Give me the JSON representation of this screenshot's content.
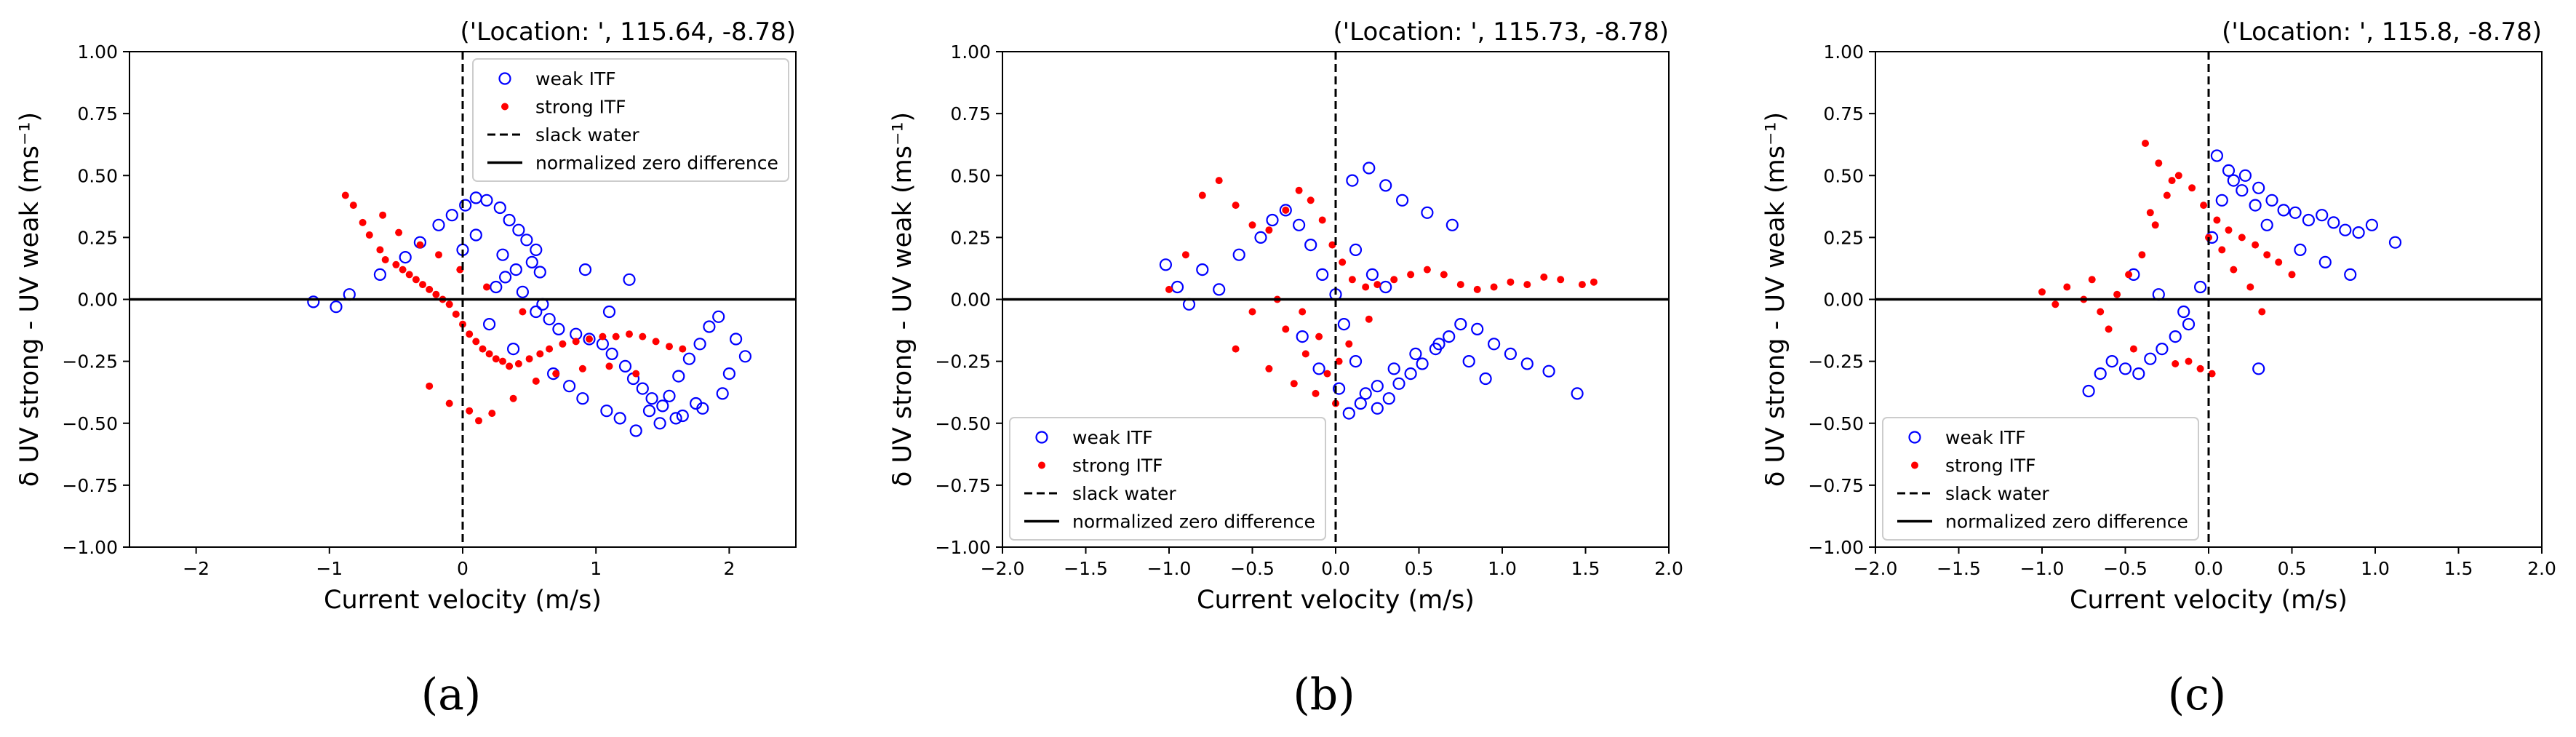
{
  "figure": {
    "marker_colors": {
      "weak": "#0000ff",
      "strong": "#ff0000"
    },
    "line_color": "#000000"
  },
  "chart_data": [
    {
      "type": "scatter",
      "caption": "(a)",
      "title": "('Location: ', 115.64, -8.78)",
      "xlabel": "Current velocity (m/s)",
      "ylabel": "δ UV strong - UV weak (ms⁻¹)",
      "xlim": [
        -2.5,
        2.5
      ],
      "ylim": [
        -1.0,
        1.0
      ],
      "xticks": [
        -2,
        -1,
        0,
        1,
        2
      ],
      "xtick_labels": [
        "−2",
        "−1",
        "0",
        "1",
        "2"
      ],
      "yticks": [
        -1.0,
        -0.75,
        -0.5,
        -0.25,
        0.0,
        0.25,
        0.5,
        0.75,
        1.0
      ],
      "ytick_labels": [
        "−1.00",
        "−0.75",
        "−0.50",
        "−0.25",
        "0.00",
        "0.25",
        "0.50",
        "0.75",
        "1.00"
      ],
      "legend_position": "top-right",
      "legend": [
        "weak ITF",
        "strong ITF",
        "slack water",
        "normalized zero difference"
      ],
      "reference_lines": {
        "slack_water_x": 0,
        "zero_difference_y": 0
      },
      "series": [
        {
          "name": "weak ITF",
          "marker": "open-circle",
          "x": [
            -1.12,
            -0.95,
            -0.85,
            -0.62,
            -0.43,
            -0.32,
            -0.18,
            -0.08,
            0.02,
            0.1,
            0.18,
            0.28,
            0.35,
            0.42,
            0.48,
            0.55,
            0.52,
            0.4,
            0.32,
            0.25,
            0.55,
            0.65,
            0.72,
            0.85,
            0.95,
            1.05,
            1.12,
            1.22,
            1.28,
            1.35,
            1.42,
            1.5,
            1.55,
            1.62,
            1.7,
            1.78,
            1.85,
            1.92,
            2.05,
            2.12,
            1.95,
            1.8,
            1.65,
            1.48,
            1.3,
            1.18,
            1.08,
            0.9,
            0.8,
            0.68,
            0.1,
            0.3,
            0.45,
            0.6,
            1.4,
            1.6,
            1.75,
            2.0,
            0.2,
            0.0,
            0.92,
            1.25,
            1.1,
            0.58,
            0.38
          ],
          "y": [
            -0.01,
            -0.03,
            0.02,
            0.1,
            0.17,
            0.23,
            0.3,
            0.34,
            0.38,
            0.41,
            0.4,
            0.37,
            0.32,
            0.28,
            0.24,
            0.2,
            0.15,
            0.12,
            0.09,
            0.05,
            -0.05,
            -0.08,
            -0.12,
            -0.14,
            -0.16,
            -0.18,
            -0.22,
            -0.27,
            -0.32,
            -0.36,
            -0.4,
            -0.43,
            -0.39,
            -0.31,
            -0.24,
            -0.18,
            -0.11,
            -0.07,
            -0.16,
            -0.23,
            -0.38,
            -0.44,
            -0.47,
            -0.5,
            -0.53,
            -0.48,
            -0.45,
            -0.4,
            -0.35,
            -0.3,
            0.26,
            0.18,
            0.03,
            -0.02,
            -0.45,
            -0.48,
            -0.42,
            -0.3,
            -0.1,
            0.2,
            0.12,
            0.08,
            -0.05,
            0.11,
            -0.2
          ]
        },
        {
          "name": "strong ITF",
          "marker": "dot",
          "x": [
            -0.88,
            -0.82,
            -0.75,
            -0.7,
            -0.62,
            -0.58,
            -0.5,
            -0.45,
            -0.4,
            -0.35,
            -0.3,
            -0.25,
            -0.2,
            -0.15,
            -0.1,
            -0.05,
            0.0,
            0.05,
            0.1,
            0.15,
            0.2,
            0.25,
            0.3,
            0.35,
            0.42,
            0.5,
            0.58,
            0.65,
            0.75,
            0.85,
            0.95,
            1.05,
            1.15,
            1.25,
            1.35,
            1.45,
            1.55,
            1.65,
            -0.25,
            -0.1,
            0.05,
            0.12,
            0.22,
            0.38,
            0.55,
            0.7,
            0.9,
            1.1,
            1.3,
            -0.6,
            -0.48,
            -0.32,
            -0.18,
            -0.02,
            0.18,
            0.45
          ],
          "y": [
            0.42,
            0.38,
            0.31,
            0.26,
            0.2,
            0.16,
            0.14,
            0.12,
            0.1,
            0.08,
            0.06,
            0.04,
            0.02,
            0.0,
            -0.02,
            -0.06,
            -0.1,
            -0.14,
            -0.17,
            -0.2,
            -0.22,
            -0.24,
            -0.25,
            -0.27,
            -0.26,
            -0.24,
            -0.22,
            -0.2,
            -0.18,
            -0.17,
            -0.16,
            -0.15,
            -0.15,
            -0.14,
            -0.15,
            -0.17,
            -0.19,
            -0.2,
            -0.35,
            -0.42,
            -0.45,
            -0.49,
            -0.46,
            -0.4,
            -0.33,
            -0.3,
            -0.28,
            -0.27,
            -0.3,
            0.34,
            0.27,
            0.22,
            0.18,
            0.12,
            0.05,
            -0.05
          ]
        }
      ]
    },
    {
      "type": "scatter",
      "caption": "(b)",
      "title": "('Location: ', 115.73, -8.78)",
      "xlabel": "Current velocity (m/s)",
      "ylabel": "δ UV strong - UV weak (ms⁻¹)",
      "xlim": [
        -2.0,
        2.0
      ],
      "ylim": [
        -1.0,
        1.0
      ],
      "xticks": [
        -2.0,
        -1.5,
        -1.0,
        -0.5,
        0.0,
        0.5,
        1.0,
        1.5,
        2.0
      ],
      "xtick_labels": [
        "−2.0",
        "−1.5",
        "−1.0",
        "−0.5",
        "0.0",
        "0.5",
        "1.0",
        "1.5",
        "2.0"
      ],
      "yticks": [
        -1.0,
        -0.75,
        -0.5,
        -0.25,
        0.0,
        0.25,
        0.5,
        0.75,
        1.0
      ],
      "ytick_labels": [
        "−1.00",
        "−0.75",
        "−0.50",
        "−0.25",
        "0.00",
        "0.25",
        "0.50",
        "0.75",
        "1.00"
      ],
      "legend_position": "bottom-left",
      "legend": [
        "weak ITF",
        "strong ITF",
        "slack water",
        "normalized zero difference"
      ],
      "reference_lines": {
        "slack_water_x": 0,
        "zero_difference_y": 0
      },
      "series": [
        {
          "name": "weak ITF",
          "marker": "open-circle",
          "x": [
            -1.02,
            -0.95,
            -0.88,
            -0.8,
            -0.7,
            -0.58,
            -0.45,
            -0.38,
            -0.3,
            -0.22,
            -0.15,
            -0.08,
            0.0,
            0.05,
            0.12,
            0.18,
            0.25,
            0.32,
            0.38,
            0.45,
            0.52,
            0.6,
            0.68,
            0.75,
            0.85,
            0.95,
            1.05,
            1.15,
            1.28,
            1.45,
            0.1,
            0.2,
            0.3,
            0.4,
            0.55,
            0.7,
            0.08,
            0.15,
            0.25,
            0.35,
            0.48,
            0.62,
            0.8,
            0.9,
            -0.2,
            -0.1,
            0.02,
            0.12,
            0.22,
            0.3
          ],
          "y": [
            0.14,
            0.05,
            -0.02,
            0.12,
            0.04,
            0.18,
            0.25,
            0.32,
            0.36,
            0.3,
            0.22,
            0.1,
            0.02,
            -0.1,
            -0.25,
            -0.38,
            -0.44,
            -0.4,
            -0.34,
            -0.3,
            -0.26,
            -0.2,
            -0.15,
            -0.1,
            -0.12,
            -0.18,
            -0.22,
            -0.26,
            -0.29,
            -0.38,
            0.48,
            0.53,
            0.46,
            0.4,
            0.35,
            0.3,
            -0.46,
            -0.42,
            -0.35,
            -0.28,
            -0.22,
            -0.18,
            -0.25,
            -0.32,
            -0.15,
            -0.28,
            -0.36,
            0.2,
            0.1,
            0.05
          ]
        },
        {
          "name": "strong ITF",
          "marker": "dot",
          "x": [
            -1.0,
            -0.9,
            -0.8,
            -0.7,
            -0.6,
            -0.5,
            -0.4,
            -0.3,
            -0.22,
            -0.15,
            -0.08,
            -0.02,
            0.04,
            0.1,
            0.18,
            0.25,
            0.35,
            0.45,
            0.55,
            0.65,
            0.75,
            0.85,
            0.95,
            1.05,
            1.15,
            1.25,
            1.35,
            1.48,
            1.55,
            -0.6,
            -0.4,
            -0.25,
            -0.12,
            0.0,
            -0.5,
            -0.3,
            -0.18,
            -0.05,
            0.08,
            0.2,
            -0.35,
            -0.2,
            -0.1,
            0.02
          ],
          "y": [
            0.04,
            0.18,
            0.42,
            0.48,
            0.38,
            0.3,
            0.28,
            0.36,
            0.44,
            0.4,
            0.32,
            0.22,
            0.15,
            0.08,
            0.05,
            0.06,
            0.08,
            0.1,
            0.12,
            0.1,
            0.06,
            0.04,
            0.05,
            0.07,
            0.06,
            0.09,
            0.08,
            0.06,
            0.07,
            -0.2,
            -0.28,
            -0.34,
            -0.38,
            -0.42,
            -0.05,
            -0.12,
            -0.22,
            -0.3,
            -0.18,
            -0.08,
            0.0,
            -0.05,
            -0.15,
            -0.25
          ]
        }
      ]
    },
    {
      "type": "scatter",
      "caption": "(c)",
      "title": "('Location: ', 115.8, -8.78)",
      "xlabel": "Current velocity (m/s)",
      "ylabel": "δ UV strong - UV weak (ms⁻¹)",
      "xlim": [
        -2.0,
        2.0
      ],
      "ylim": [
        -1.0,
        1.0
      ],
      "xticks": [
        -2.0,
        -1.5,
        -1.0,
        -0.5,
        0.0,
        0.5,
        1.0,
        1.5,
        2.0
      ],
      "xtick_labels": [
        "−2.0",
        "−1.5",
        "−1.0",
        "−0.5",
        "0.0",
        "0.5",
        "1.0",
        "1.5",
        "2.0"
      ],
      "yticks": [
        -1.0,
        -0.75,
        -0.5,
        -0.25,
        0.0,
        0.25,
        0.5,
        0.75,
        1.0
      ],
      "ytick_labels": [
        "−1.00",
        "−0.75",
        "−0.50",
        "−0.25",
        "0.00",
        "0.25",
        "0.50",
        "0.75",
        "1.00"
      ],
      "legend_position": "bottom-left",
      "legend": [
        "weak ITF",
        "strong ITF",
        "slack water",
        "normalized zero difference"
      ],
      "reference_lines": {
        "slack_water_x": 0,
        "zero_difference_y": 0
      },
      "series": [
        {
          "name": "weak ITF",
          "marker": "open-circle",
          "x": [
            -0.72,
            -0.65,
            -0.58,
            -0.5,
            -0.42,
            -0.35,
            -0.28,
            -0.2,
            -0.12,
            -0.05,
            0.02,
            0.08,
            0.15,
            0.22,
            0.3,
            0.38,
            0.45,
            0.52,
            0.6,
            0.68,
            0.75,
            0.82,
            0.9,
            0.98,
            1.12,
            0.05,
            0.12,
            0.2,
            0.28,
            0.35,
            -0.45,
            -0.3,
            -0.15,
            0.3,
            0.55,
            0.7,
            0.85
          ],
          "y": [
            -0.37,
            -0.3,
            -0.25,
            -0.28,
            -0.3,
            -0.24,
            -0.2,
            -0.15,
            -0.1,
            0.05,
            0.25,
            0.4,
            0.48,
            0.5,
            0.45,
            0.4,
            0.36,
            0.35,
            0.32,
            0.34,
            0.31,
            0.28,
            0.27,
            0.3,
            0.23,
            0.58,
            0.52,
            0.44,
            0.38,
            0.3,
            0.1,
            0.02,
            -0.05,
            -0.28,
            0.2,
            0.15,
            0.1
          ]
        },
        {
          "name": "strong ITF",
          "marker": "dot",
          "x": [
            -1.0,
            -0.92,
            -0.85,
            -0.75,
            -0.65,
            -0.55,
            -0.48,
            -0.4,
            -0.32,
            -0.25,
            -0.18,
            -0.1,
            -0.03,
            0.05,
            0.12,
            0.2,
            0.28,
            0.35,
            0.42,
            0.5,
            -0.38,
            -0.3,
            -0.22,
            -0.12,
            -0.05,
            0.02,
            -0.6,
            -0.45,
            -0.2,
            0.08,
            0.15,
            0.25,
            -0.7,
            -0.35,
            0.0,
            0.32
          ],
          "y": [
            0.03,
            -0.02,
            0.05,
            0.0,
            -0.05,
            0.02,
            0.1,
            0.18,
            0.3,
            0.42,
            0.5,
            0.45,
            0.38,
            0.32,
            0.28,
            0.25,
            0.22,
            0.18,
            0.15,
            0.1,
            0.63,
            0.55,
            0.48,
            -0.25,
            -0.28,
            -0.3,
            -0.12,
            -0.2,
            -0.26,
            0.2,
            0.12,
            0.05,
            0.08,
            0.35,
            0.25,
            -0.05
          ]
        }
      ]
    }
  ]
}
